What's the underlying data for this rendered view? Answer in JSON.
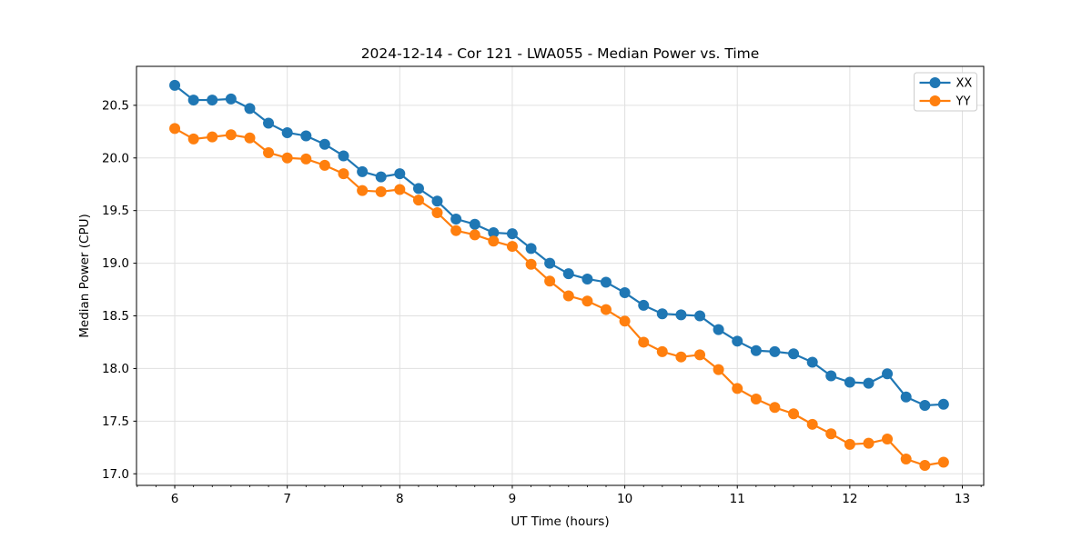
{
  "figure": {
    "background": "#ffffff"
  },
  "chart_data": {
    "type": "line",
    "title": "2024-12-14 - Cor 121 - LWA055 - Median Power vs. Time",
    "xlabel": "UT Time (hours)",
    "ylabel": "Median Power (CPU)",
    "xlim": [
      5.66,
      13.19
    ],
    "ylim": [
      16.89,
      20.87
    ],
    "x_ticks": [
      6,
      7,
      8,
      9,
      10,
      11,
      12,
      13
    ],
    "y_ticks": [
      17.0,
      17.5,
      18.0,
      18.5,
      19.0,
      19.5,
      20.0,
      20.5
    ],
    "x_minor_step": 0.16667,
    "grid": true,
    "legend_position": "upper right",
    "grid_color": "#e0e0e0",
    "spine_color": "#000000",
    "x": [
      6,
      6.167,
      6.333,
      6.5,
      6.667,
      6.833,
      7,
      7.167,
      7.333,
      7.5,
      7.667,
      7.833,
      8,
      8.167,
      8.333,
      8.5,
      8.667,
      8.833,
      9,
      9.167,
      9.333,
      9.5,
      9.667,
      9.833,
      10,
      10.167,
      10.333,
      10.5,
      10.667,
      10.833,
      11,
      11.167,
      11.333,
      11.5,
      11.667,
      11.833,
      12,
      12.167,
      12.333,
      12.5,
      12.667,
      12.833
    ],
    "series": [
      {
        "name": "XX",
        "color": "#1f77b4",
        "values": [
          20.69,
          20.55,
          20.55,
          20.56,
          20.47,
          20.33,
          20.24,
          20.21,
          20.13,
          20.02,
          19.87,
          19.82,
          19.85,
          19.71,
          19.59,
          19.42,
          19.37,
          19.29,
          19.28,
          19.14,
          19.0,
          18.9,
          18.85,
          18.82,
          18.72,
          18.6,
          18.52,
          18.51,
          18.5,
          18.37,
          18.26,
          18.17,
          18.16,
          18.14,
          18.06,
          17.93,
          17.87,
          17.86,
          17.95,
          17.73,
          17.65,
          17.66
        ]
      },
      {
        "name": "YY",
        "color": "#ff7f0e",
        "values": [
          20.28,
          20.18,
          20.2,
          20.22,
          20.19,
          20.05,
          20.0,
          19.99,
          19.93,
          19.85,
          19.69,
          19.68,
          19.7,
          19.6,
          19.48,
          19.31,
          19.27,
          19.21,
          19.16,
          18.99,
          18.83,
          18.69,
          18.64,
          18.56,
          18.45,
          18.25,
          18.16,
          18.11,
          18.13,
          17.99,
          17.81,
          17.71,
          17.63,
          17.57,
          17.47,
          17.38,
          17.28,
          17.29,
          17.33,
          17.14,
          17.08,
          17.11
        ]
      }
    ]
  }
}
